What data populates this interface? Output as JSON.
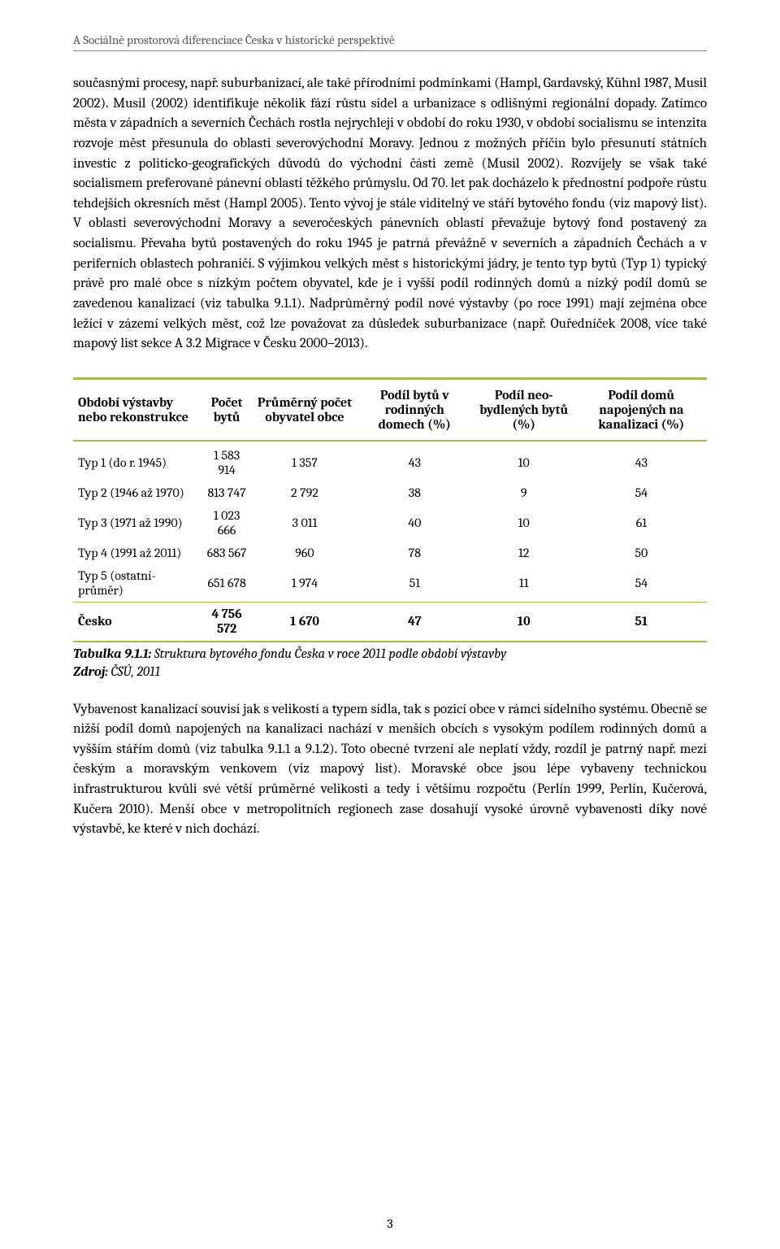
{
  "header": {
    "title": "A Sociálně prostorová diferenciace Česka v historické perspektivě"
  },
  "paragraph1": "současnými procesy, např. suburbanizací, ale také přírodními podmínkami (Hampl, Gardavský, Kühnl 1987, Musil 2002). Musil (2002) identifikuje několik fází růstu sídel a urbanizace s odlišnými regionální dopady. Zatímco města v západních a severních Čechách rostla nejrychleji v období do roku 1930, v období socialismu se intenzita rozvoje měst přesunula do oblasti severovýchodní Moravy. Jednou z možných příčin bylo přesunutí státních investic z politicko-geografických důvodů do východní části země (Musil 2002). Rozvíjely se však také socialismem preferované pánevní oblasti těžkého průmyslu. Od 70. let pak docházelo k přednostní podpoře růstu tehdejších okresních měst (Hampl 2005). Tento vývoj je stále viditelný ve stáří bytového fondu (viz mapový list). V oblasti severovýchodní Moravy a severočeských pánevních oblastí převažuje bytový fond postavený za socialismu. Převaha bytů postavených do roku 1945 je patrná převážně v severních a západních Čechách a v periferních oblastech pohraničí. S výjimkou velkých měst s historickými jádry, je tento typ bytů (Typ 1) typický právě pro malé obce s nízkým počtem obyvatel, kde je i vyšší podíl rodinných domů a nízký podíl domů se zavedenou kanalizací (viz tabulka 9.1.1). Nadprůměrný podíl nové výstavby (po roce 1991) mají zejména obce ležící v zázemí velkých měst, což lze považovat za důsledek suburbanizace (např. Ouředníček 2008, více také mapový list sekce A 3.2 Migrace v Česku 2000–2013).",
  "table": {
    "columns": [
      "Období výstavby nebo rekonstrukce",
      "Počet bytů",
      "Průměrný počet obyvatel obce",
      "Podíl bytů v rodinných domech (%)",
      "Podíl neo-bydlených bytů (%)",
      "Podíl domů napojených na kanalizaci (%)"
    ],
    "rows": [
      [
        "Typ 1 (do r. 1945)",
        "1 583 914",
        "1 357",
        "43",
        "10",
        "43"
      ],
      [
        "Typ 2 (1946 až 1970)",
        "813 747",
        "2 792",
        "38",
        "9",
        "54"
      ],
      [
        "Typ 3 (1971 až 1990)",
        "1 023 666",
        "3 011",
        "40",
        "10",
        "61"
      ],
      [
        "Typ 4 (1991 až 2011)",
        "683 567",
        "960",
        "78",
        "12",
        "50"
      ],
      [
        "Typ 5 (ostatní-průměr)",
        "651 678",
        "1 974",
        "51",
        "11",
        "54"
      ],
      [
        "Česko",
        "4 756 572",
        "1 670",
        "47",
        "10",
        "51"
      ]
    ],
    "caption_label": "Tabulka 9.1.1:",
    "caption_title": " Struktura bytového fondu Česka v roce 2011 podle období výstavby",
    "source_label": "Zdroj:",
    "source_text": " ČSÚ, 2011",
    "accent_color": "#a5b84f"
  },
  "paragraph2": "Vybavenost kanalizací souvisí jak s velikostí a typem sídla, tak s pozicí obce v rámci sídelního systému. Obecně se nižší podíl domů napojených na kanalizaci nachází v menších obcích s vysokým podílem rodinných domů a vyšším stářím domů (viz tabulka 9.1.1 a 9.1.2). Toto obecné tvrzení ale neplatí vždy, rozdíl je patrný např. mezi českým a moravským venkovem (viz mapový list). Moravské obce jsou lépe vybaveny technickou infrastrukturou kvůli své větší průměrné velikosti a tedy i většímu rozpočtu (Perlín 1999, Perlín, Kučerová, Kučera 2010). Menší obce v metropolitních regionech zase dosahují vysoké úrovně vybavenosti díky nové výstavbě, ke které v nich dochází.",
  "page_number": "3"
}
